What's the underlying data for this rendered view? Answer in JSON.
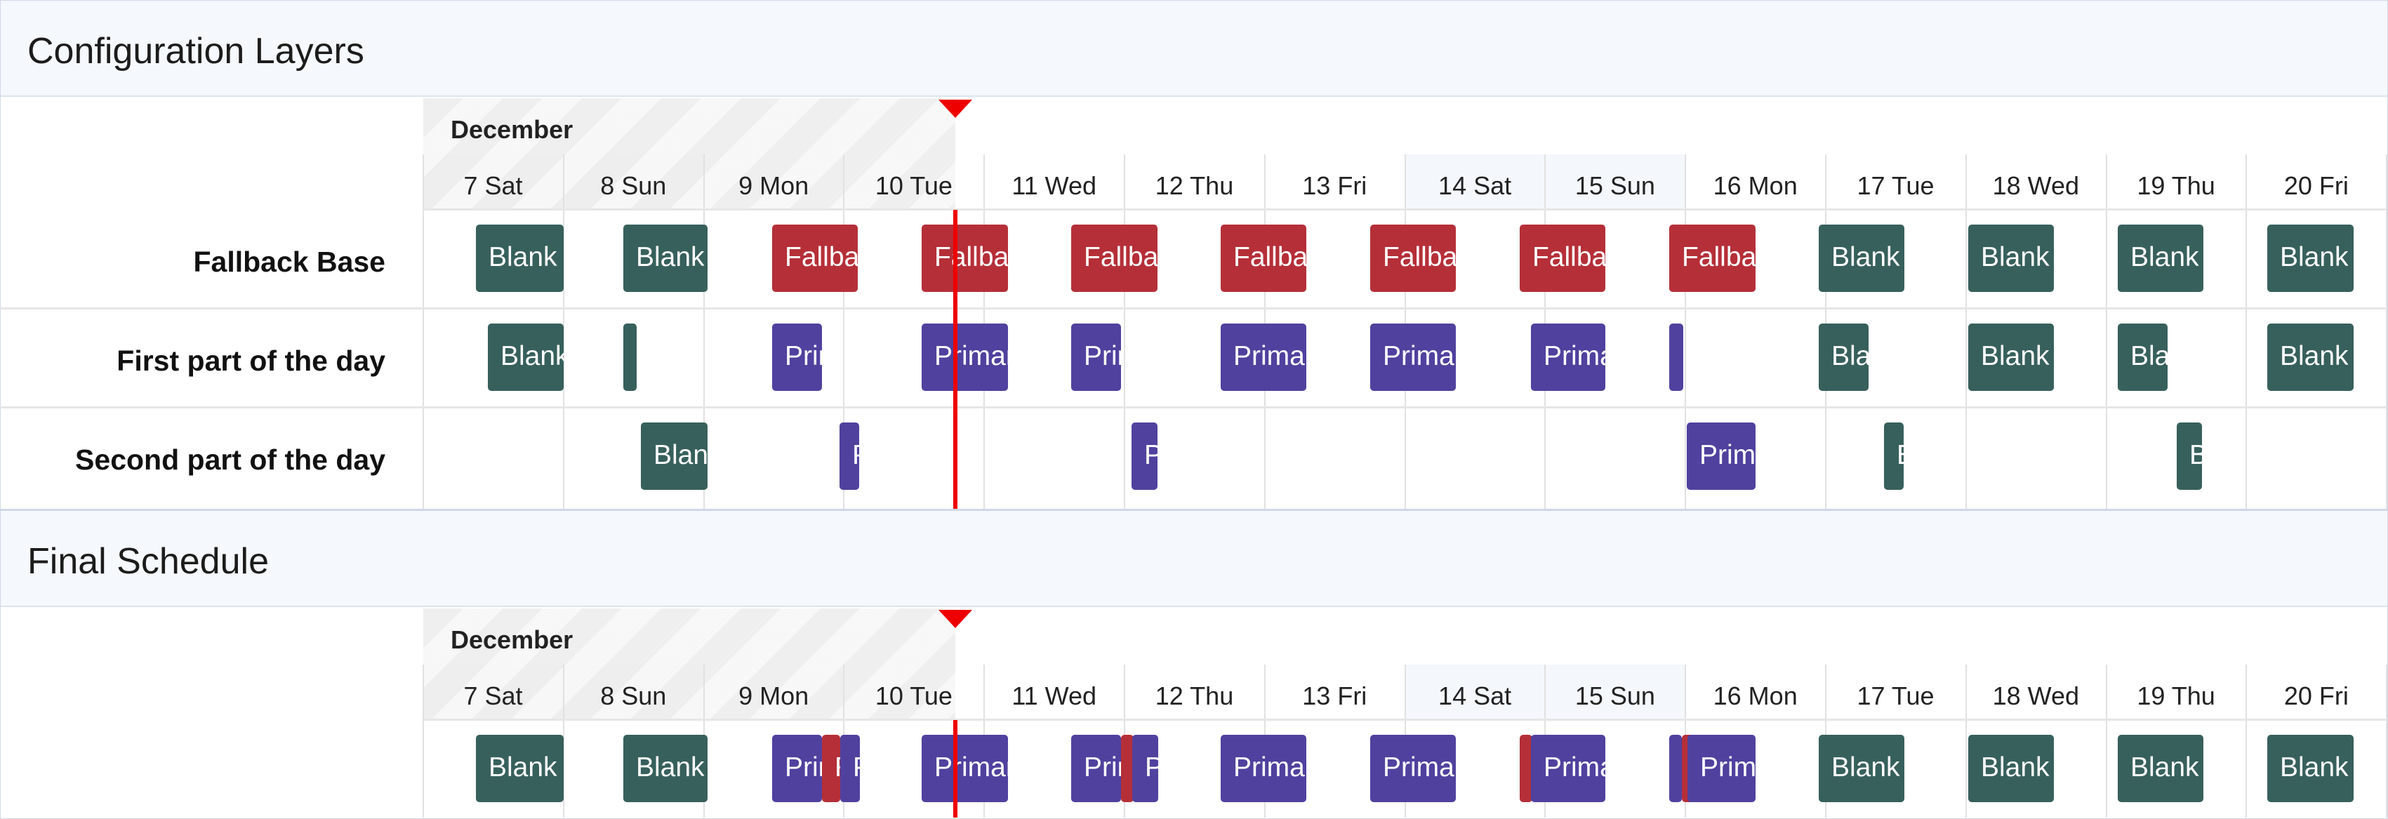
{
  "colors": {
    "blank": "#37605c",
    "fallback": "#b52f38",
    "primary": "#50419e",
    "now": "#ee0000",
    "weekend": "#f4f8fd",
    "header_bg": "#f5f8fc"
  },
  "config_layers": {
    "title": "Configuration Layers",
    "month": "December",
    "rows": [
      {
        "label": "Fallback Base"
      },
      {
        "label": "First part of the day"
      },
      {
        "label": "Second part of the day"
      }
    ]
  },
  "final_schedule": {
    "title": "Final Schedule",
    "month": "December"
  },
  "days": [
    {
      "label": "7 Sat",
      "weekend": true
    },
    {
      "label": "8 Sun",
      "weekend": true
    },
    {
      "label": "9 Mon",
      "weekend": false
    },
    {
      "label": "10 Tue",
      "weekend": false
    },
    {
      "label": "11 Wed",
      "weekend": false
    },
    {
      "label": "12 Thu",
      "weekend": false
    },
    {
      "label": "13 Fri",
      "weekend": false
    },
    {
      "label": "14 Sat",
      "weekend": true
    },
    {
      "label": "15 Sun",
      "weekend": true
    },
    {
      "label": "16 Mon",
      "weekend": false
    },
    {
      "label": "17 Tue",
      "weekend": false
    },
    {
      "label": "18 Wed",
      "weekend": false
    },
    {
      "label": "19 Thu",
      "weekend": false
    },
    {
      "label": "20 Fri",
      "weekend": false
    }
  ],
  "bar_labels": {
    "blank": "Blank",
    "fallback": "Fallback",
    "primary": "Primary"
  }
}
